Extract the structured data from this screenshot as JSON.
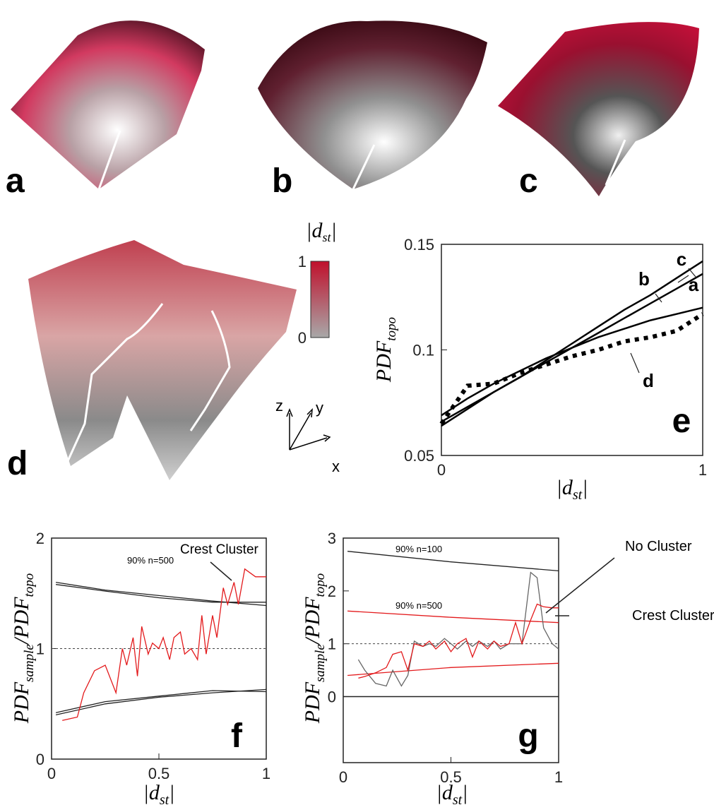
{
  "illustrations": {
    "labels": [
      "a",
      "b",
      "c",
      "d"
    ],
    "colorbar": {
      "title": [
        "|d",
        "st",
        "|"
      ],
      "ticks": [
        0,
        1
      ],
      "colors": [
        "#a8a8a8",
        "#c0102c"
      ]
    },
    "axes": [
      "z",
      "y",
      "x"
    ]
  },
  "chart_data": [
    {
      "type": "line",
      "panel_label": "e",
      "ylabel": [
        "PDF",
        "topo"
      ],
      "xlabel": [
        "|d",
        "st",
        "|"
      ],
      "xlim": [
        0,
        1
      ],
      "ylim": [
        0.05,
        0.15
      ],
      "xticks": [
        0,
        1
      ],
      "yticks": [
        0.05,
        0.1,
        0.15
      ],
      "series": [
        {
          "name": "a",
          "color": "#000000",
          "style": "solid",
          "x": [
            0,
            0.1,
            0.2,
            0.3,
            0.4,
            0.5,
            0.6,
            0.7,
            0.8,
            0.9,
            1
          ],
          "values": [
            0.066,
            0.073,
            0.08,
            0.087,
            0.094,
            0.101,
            0.108,
            0.115,
            0.122,
            0.129,
            0.136
          ]
        },
        {
          "name": "b",
          "color": "#000000",
          "style": "solid",
          "x": [
            0,
            0.1,
            0.2,
            0.3,
            0.4,
            0.5,
            0.6,
            0.7,
            0.8,
            0.9,
            1
          ],
          "values": [
            0.069,
            0.077,
            0.084,
            0.09,
            0.096,
            0.101,
            0.106,
            0.11,
            0.114,
            0.117,
            0.12
          ]
        },
        {
          "name": "c",
          "color": "#000000",
          "style": "solid",
          "x": [
            0,
            0.1,
            0.2,
            0.3,
            0.4,
            0.5,
            0.6,
            0.7,
            0.8,
            0.9,
            1
          ],
          "values": [
            0.064,
            0.072,
            0.08,
            0.087,
            0.095,
            0.103,
            0.111,
            0.119,
            0.126,
            0.134,
            0.142
          ]
        },
        {
          "name": "d",
          "color": "#000000",
          "style": "dotted",
          "x": [
            0,
            0.1,
            0.2,
            0.3,
            0.4,
            0.5,
            0.6,
            0.7,
            0.8,
            0.9,
            1
          ],
          "values": [
            0.065,
            0.083,
            0.084,
            0.089,
            0.093,
            0.097,
            0.1,
            0.104,
            0.106,
            0.109,
            0.117
          ]
        }
      ]
    },
    {
      "type": "line",
      "panel_label": "f",
      "ylabel": [
        "PDF",
        "sample",
        "/PDF",
        "topo"
      ],
      "xlabel": [
        "|d",
        "st",
        "|"
      ],
      "xlim": [
        0,
        1
      ],
      "ylim": [
        0,
        2
      ],
      "xticks": [
        0,
        0.5,
        1
      ],
      "yticks": [
        0,
        1,
        2
      ],
      "hline": 1,
      "annotations": [
        "90% n=500",
        "Crest Cluster"
      ],
      "series": [
        {
          "color": "#222222",
          "style": "thin",
          "x": [
            0.02,
            0.25,
            0.5,
            0.75,
            1
          ],
          "values": [
            1.6,
            1.53,
            1.48,
            1.43,
            1.39
          ]
        },
        {
          "color": "#222222",
          "style": "thin",
          "x": [
            0.02,
            0.25,
            0.5,
            0.75,
            1
          ],
          "values": [
            1.58,
            1.52,
            1.46,
            1.42,
            1.42
          ]
        },
        {
          "color": "#222222",
          "style": "thin",
          "x": [
            0.02,
            0.25,
            0.5,
            0.75,
            1
          ],
          "values": [
            0.4,
            0.5,
            0.56,
            0.6,
            0.63
          ]
        },
        {
          "color": "#222222",
          "style": "thin",
          "x": [
            0.02,
            0.25,
            0.5,
            0.75,
            1
          ],
          "values": [
            0.42,
            0.52,
            0.57,
            0.62,
            0.61
          ]
        },
        {
          "color": "#e31a1c",
          "style": "thin",
          "x": [
            0.05,
            0.12,
            0.15,
            0.2,
            0.25,
            0.3,
            0.33,
            0.35,
            0.38,
            0.4,
            0.42,
            0.45,
            0.47,
            0.5,
            0.52,
            0.55,
            0.57,
            0.6,
            0.62,
            0.65,
            0.68,
            0.7,
            0.72,
            0.75,
            0.77,
            0.8,
            0.82,
            0.85,
            0.87,
            0.9,
            0.95,
            1.0
          ],
          "values": [
            0.35,
            0.38,
            0.6,
            0.8,
            0.85,
            0.6,
            1.0,
            0.85,
            1.1,
            0.75,
            1.2,
            0.95,
            1.05,
            1.0,
            1.1,
            0.9,
            1.1,
            1.15,
            0.95,
            1.0,
            0.9,
            1.3,
            0.95,
            1.3,
            1.1,
            1.55,
            1.4,
            1.6,
            1.4,
            1.72,
            1.65,
            1.65
          ]
        }
      ]
    },
    {
      "type": "line",
      "panel_label": "g",
      "ylabel": [
        "PDF",
        "sample",
        "/PDF",
        "topo"
      ],
      "xlabel": [
        "|d",
        "st",
        "|"
      ],
      "xlim": [
        0,
        1
      ],
      "ylim": [
        -1.25,
        3
      ],
      "xticks": [
        0,
        0.5,
        1
      ],
      "yticks": [
        0,
        1,
        2,
        3
      ],
      "hline": 1,
      "annotations": [
        "90% n=100",
        "90% n=500",
        "No Cluster",
        "Crest Cluster"
      ],
      "series": [
        {
          "color": "#222222",
          "style": "thin",
          "x": [
            0.02,
            0.5,
            1
          ],
          "values": [
            2.75,
            2.55,
            2.38
          ]
        },
        {
          "color": "#e31a1c",
          "style": "thin",
          "x": [
            0.02,
            0.5,
            1
          ],
          "values": [
            1.62,
            1.5,
            1.4
          ]
        },
        {
          "color": "#e31a1c",
          "style": "thin",
          "x": [
            0.02,
            0.5,
            1
          ],
          "values": [
            0.4,
            0.55,
            0.63
          ]
        },
        {
          "color": "#666666",
          "style": "thin",
          "x": [
            0.07,
            0.1,
            0.15,
            0.2,
            0.23,
            0.27,
            0.3,
            0.33,
            0.37,
            0.4,
            0.43,
            0.47,
            0.5,
            0.53,
            0.57,
            0.6,
            0.63,
            0.67,
            0.7,
            0.73,
            0.77,
            0.8,
            0.83,
            0.87,
            0.9,
            0.93,
            0.97,
            1.0
          ],
          "values": [
            0.7,
            0.5,
            0.25,
            0.2,
            0.5,
            0.2,
            0.4,
            1.05,
            0.95,
            1.0,
            0.95,
            1.1,
            1.0,
            0.9,
            1.05,
            0.95,
            1.05,
            0.95,
            1.05,
            0.9,
            1.0,
            1.0,
            1.0,
            2.35,
            2.25,
            1.3,
            1.0,
            0.9
          ]
        },
        {
          "color": "#e31a1c",
          "style": "thin",
          "x": [
            0.07,
            0.1,
            0.15,
            0.2,
            0.23,
            0.27,
            0.3,
            0.33,
            0.37,
            0.4,
            0.43,
            0.47,
            0.5,
            0.53,
            0.57,
            0.6,
            0.63,
            0.67,
            0.7,
            0.73,
            0.77,
            0.8,
            0.83,
            0.87,
            0.9,
            0.93,
            0.97,
            1.0
          ],
          "values": [
            0.35,
            0.38,
            0.45,
            0.55,
            0.8,
            0.85,
            0.5,
            1.0,
            0.95,
            1.05,
            0.9,
            1.05,
            0.85,
            1.0,
            1.1,
            0.75,
            1.05,
            0.9,
            1.05,
            0.95,
            1.0,
            1.4,
            1.0,
            1.45,
            1.75,
            1.7,
            1.68,
            1.68
          ]
        }
      ]
    }
  ]
}
